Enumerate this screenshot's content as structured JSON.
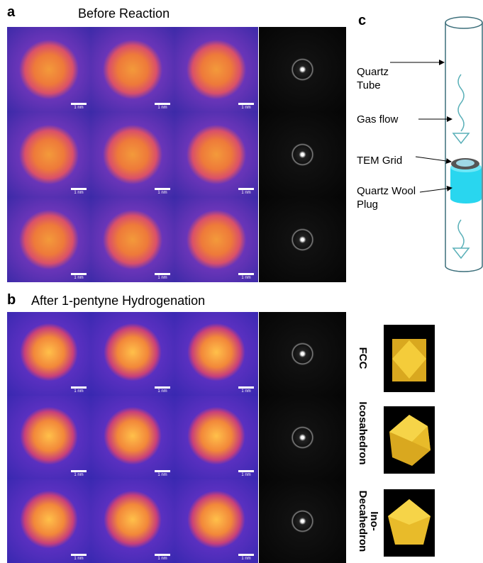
{
  "panel_a": {
    "label": "a",
    "title": "Before Reaction"
  },
  "panel_b": {
    "label": "b",
    "title": "After 1-pentyne Hydrogenation",
    "structures": [
      "FCC",
      "Icosahedron",
      "Ino-Decahedron"
    ]
  },
  "panel_c": {
    "label": "c",
    "callouts": [
      "Quartz Tube",
      "Gas flow",
      "TEM Grid",
      "Quartz Wool Plug"
    ]
  },
  "scale_bar": "1 nm"
}
